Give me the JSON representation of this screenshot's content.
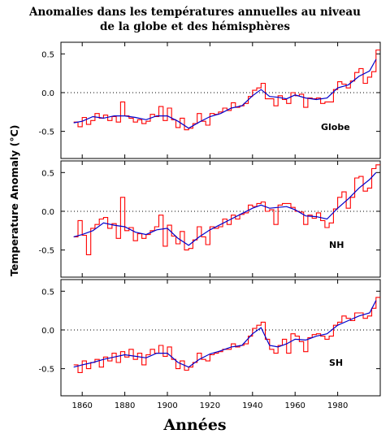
{
  "title_line1": "Anomalies dans les températures annuelles au niveau",
  "title_line2": "de la globe et des hémisphères",
  "ylabel": "Temperature Anomaly (°C)",
  "xlabel": "Années",
  "colors": {
    "raw": "#ff0000",
    "smooth": "#0000cc",
    "zero": "#000000",
    "frame": "#000000"
  },
  "chart_data": {
    "type": "line",
    "panels": [
      {
        "label": "Globe",
        "xlim": [
          1850,
          2000
        ],
        "ylim": [
          -0.85,
          0.65
        ],
        "yticks": [
          0.5,
          0.0,
          -0.5
        ],
        "ytick_labels": [
          "0.5",
          "0.0",
          "-0.5"
        ],
        "series": [
          {
            "type": "raw",
            "x": [
              1856,
              1858,
              1860,
              1862,
              1864,
              1866,
              1868,
              1870,
              1872,
              1874,
              1876,
              1878,
              1880,
              1882,
              1884,
              1886,
              1888,
              1890,
              1892,
              1894,
              1896,
              1898,
              1900,
              1902,
              1904,
              1906,
              1908,
              1910,
              1912,
              1914,
              1916,
              1918,
              1920,
              1922,
              1924,
              1926,
              1928,
              1930,
              1932,
              1934,
              1936,
              1938,
              1940,
              1942,
              1944,
              1946,
              1948,
              1950,
              1952,
              1954,
              1956,
              1958,
              1960,
              1962,
              1964,
              1966,
              1968,
              1970,
              1972,
              1974,
              1976,
              1978,
              1980,
              1982,
              1984,
              1986,
              1988,
              1990,
              1992,
              1994,
              1996,
              1998
            ],
            "y": [
              -0.38,
              -0.44,
              -0.32,
              -0.41,
              -0.36,
              -0.27,
              -0.33,
              -0.29,
              -0.36,
              -0.31,
              -0.38,
              -0.12,
              -0.3,
              -0.33,
              -0.38,
              -0.35,
              -0.4,
              -0.37,
              -0.28,
              -0.31,
              -0.18,
              -0.36,
              -0.2,
              -0.35,
              -0.45,
              -0.33,
              -0.48,
              -0.46,
              -0.4,
              -0.27,
              -0.37,
              -0.42,
              -0.27,
              -0.28,
              -0.25,
              -0.2,
              -0.23,
              -0.13,
              -0.19,
              -0.17,
              -0.14,
              -0.05,
              0.03,
              0.06,
              0.12,
              -0.08,
              -0.08,
              -0.17,
              -0.04,
              -0.09,
              -0.14,
              0.0,
              -0.04,
              -0.02,
              -0.19,
              -0.07,
              -0.08,
              -0.07,
              -0.14,
              -0.12,
              -0.12,
              0.04,
              0.14,
              0.11,
              0.06,
              0.15,
              0.26,
              0.31,
              0.12,
              0.2,
              0.27,
              0.55
            ]
          },
          {
            "type": "smooth",
            "x": [
              1856,
              1860,
              1865,
              1870,
              1875,
              1880,
              1885,
              1890,
              1895,
              1900,
              1905,
              1910,
              1915,
              1920,
              1925,
              1930,
              1935,
              1940,
              1944,
              1948,
              1952,
              1956,
              1960,
              1965,
              1970,
              1975,
              1980,
              1985,
              1990,
              1995,
              1998
            ],
            "y": [
              -0.39,
              -0.37,
              -0.31,
              -0.33,
              -0.3,
              -0.3,
              -0.32,
              -0.35,
              -0.3,
              -0.3,
              -0.37,
              -0.46,
              -0.38,
              -0.31,
              -0.27,
              -0.2,
              -0.17,
              -0.04,
              0.04,
              -0.05,
              -0.06,
              -0.08,
              -0.03,
              -0.07,
              -0.09,
              -0.07,
              0.06,
              0.1,
              0.21,
              0.28,
              0.43
            ]
          }
        ]
      },
      {
        "label": "NH",
        "xlim": [
          1850,
          2000
        ],
        "ylim": [
          -0.85,
          0.65
        ],
        "yticks": [
          0.5,
          0.0,
          -0.5
        ],
        "ytick_labels": [
          "0.5",
          "0.0",
          "-0.5"
        ],
        "series": [
          {
            "type": "raw",
            "x": [
              1856,
              1858,
              1860,
              1862,
              1864,
              1866,
              1868,
              1870,
              1872,
              1874,
              1876,
              1878,
              1880,
              1882,
              1884,
              1886,
              1888,
              1890,
              1892,
              1894,
              1896,
              1898,
              1900,
              1902,
              1904,
              1906,
              1908,
              1910,
              1912,
              1914,
              1916,
              1918,
              1920,
              1922,
              1924,
              1926,
              1928,
              1930,
              1932,
              1934,
              1936,
              1938,
              1940,
              1942,
              1944,
              1946,
              1948,
              1950,
              1952,
              1954,
              1956,
              1958,
              1960,
              1962,
              1964,
              1966,
              1968,
              1970,
              1972,
              1974,
              1976,
              1978,
              1980,
              1982,
              1984,
              1986,
              1988,
              1990,
              1992,
              1994,
              1996,
              1998
            ],
            "y": [
              -0.33,
              -0.12,
              -0.31,
              -0.56,
              -0.22,
              -0.17,
              -0.1,
              -0.08,
              -0.22,
              -0.16,
              -0.35,
              0.18,
              -0.25,
              -0.21,
              -0.38,
              -0.29,
              -0.35,
              -0.3,
              -0.25,
              -0.2,
              -0.05,
              -0.45,
              -0.18,
              -0.32,
              -0.42,
              -0.26,
              -0.5,
              -0.48,
              -0.37,
              -0.2,
              -0.33,
              -0.43,
              -0.2,
              -0.22,
              -0.2,
              -0.1,
              -0.17,
              -0.05,
              -0.1,
              -0.04,
              -0.02,
              0.08,
              0.06,
              0.1,
              0.12,
              0.0,
              0.02,
              -0.17,
              0.08,
              0.1,
              0.1,
              0.05,
              0.0,
              -0.01,
              -0.17,
              -0.05,
              -0.09,
              -0.02,
              -0.12,
              -0.21,
              -0.15,
              0.03,
              0.18,
              0.25,
              0.04,
              0.18,
              0.43,
              0.45,
              0.26,
              0.3,
              0.55,
              0.6
            ]
          },
          {
            "type": "smooth",
            "x": [
              1856,
              1860,
              1865,
              1870,
              1875,
              1880,
              1885,
              1890,
              1895,
              1900,
              1905,
              1910,
              1915,
              1920,
              1925,
              1930,
              1935,
              1940,
              1944,
              1948,
              1952,
              1956,
              1960,
              1965,
              1970,
              1975,
              1980,
              1985,
              1990,
              1995,
              1998
            ],
            "y": [
              -0.33,
              -0.3,
              -0.25,
              -0.15,
              -0.18,
              -0.2,
              -0.27,
              -0.3,
              -0.24,
              -0.22,
              -0.35,
              -0.44,
              -0.33,
              -0.24,
              -0.17,
              -0.1,
              -0.03,
              0.04,
              0.08,
              0.04,
              0.05,
              0.06,
              0.02,
              -0.06,
              -0.07,
              -0.1,
              0.04,
              0.16,
              0.3,
              0.41,
              0.5
            ]
          }
        ]
      },
      {
        "label": "SH",
        "xlim": [
          1850,
          2000
        ],
        "ylim": [
          -0.85,
          0.65
        ],
        "yticks": [
          0.5,
          0.0,
          -0.5
        ],
        "ytick_labels": [
          "0.5",
          "0.0",
          "-0.5"
        ],
        "series": [
          {
            "type": "raw",
            "x": [
              1856,
              1858,
              1860,
              1862,
              1864,
              1866,
              1868,
              1870,
              1872,
              1874,
              1876,
              1878,
              1880,
              1882,
              1884,
              1886,
              1888,
              1890,
              1892,
              1894,
              1896,
              1898,
              1900,
              1902,
              1904,
              1906,
              1908,
              1910,
              1912,
              1914,
              1916,
              1918,
              1920,
              1922,
              1924,
              1926,
              1928,
              1930,
              1932,
              1934,
              1936,
              1938,
              1940,
              1942,
              1944,
              1946,
              1948,
              1950,
              1952,
              1954,
              1956,
              1958,
              1960,
              1962,
              1964,
              1966,
              1968,
              1970,
              1972,
              1974,
              1976,
              1978,
              1980,
              1982,
              1984,
              1986,
              1988,
              1990,
              1992,
              1994,
              1996,
              1998
            ],
            "y": [
              -0.45,
              -0.55,
              -0.4,
              -0.5,
              -0.42,
              -0.38,
              -0.48,
              -0.35,
              -0.4,
              -0.3,
              -0.42,
              -0.28,
              -0.35,
              -0.25,
              -0.38,
              -0.3,
              -0.45,
              -0.32,
              -0.25,
              -0.3,
              -0.2,
              -0.34,
              -0.22,
              -0.38,
              -0.5,
              -0.4,
              -0.52,
              -0.48,
              -0.42,
              -0.3,
              -0.38,
              -0.4,
              -0.32,
              -0.3,
              -0.28,
              -0.25,
              -0.25,
              -0.18,
              -0.22,
              -0.2,
              -0.18,
              -0.08,
              0.02,
              0.06,
              0.1,
              -0.12,
              -0.25,
              -0.3,
              -0.2,
              -0.12,
              -0.3,
              -0.05,
              -0.08,
              -0.15,
              -0.28,
              -0.1,
              -0.06,
              -0.05,
              -0.08,
              -0.12,
              -0.08,
              0.06,
              0.1,
              0.18,
              0.15,
              0.12,
              0.22,
              0.22,
              0.15,
              0.18,
              0.28,
              0.42
            ]
          },
          {
            "type": "smooth",
            "x": [
              1856,
              1860,
              1865,
              1870,
              1875,
              1880,
              1885,
              1890,
              1895,
              1900,
              1905,
              1910,
              1915,
              1920,
              1925,
              1930,
              1935,
              1940,
              1944,
              1948,
              1952,
              1956,
              1960,
              1965,
              1970,
              1975,
              1980,
              1985,
              1990,
              1995,
              1998
            ],
            "y": [
              -0.48,
              -0.45,
              -0.42,
              -0.38,
              -0.35,
              -0.32,
              -0.34,
              -0.36,
              -0.3,
              -0.3,
              -0.42,
              -0.48,
              -0.38,
              -0.31,
              -0.27,
              -0.22,
              -0.2,
              -0.05,
              0.03,
              -0.2,
              -0.22,
              -0.18,
              -0.12,
              -0.13,
              -0.08,
              -0.05,
              0.06,
              0.12,
              0.18,
              0.22,
              0.38
            ]
          }
        ]
      }
    ],
    "x_ticks": [
      1860,
      1880,
      1900,
      1920,
      1940,
      1960,
      1980
    ]
  }
}
